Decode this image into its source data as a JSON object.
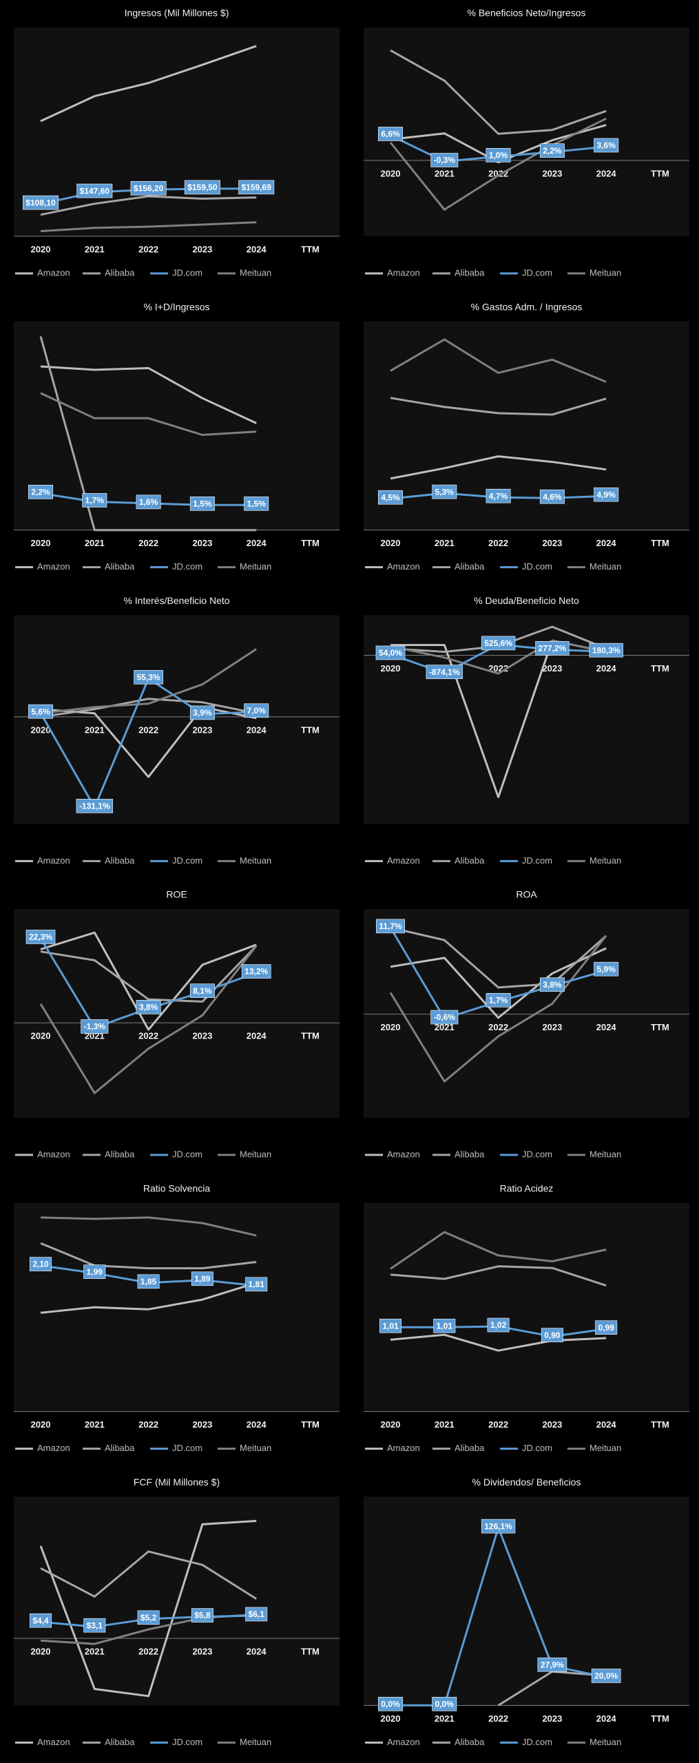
{
  "chart_data": [
    {
      "type": "line",
      "title": "Ingresos (Mil Millones $)",
      "categories": [
        "2020",
        "2021",
        "2022",
        "2023",
        "2024",
        "TTM"
      ],
      "ylim": [
        0,
        700
      ],
      "legend": "bottom",
      "series": [
        {
          "name": "Amazon",
          "color": "#bfbfbf",
          "values": [
            386,
            470,
            514,
            575,
            638,
            null
          ]
        },
        {
          "name": "Alibaba",
          "color": "#a6a6a6",
          "values": [
            72,
            109,
            134,
            126,
            130,
            null
          ]
        },
        {
          "name": "JD.com",
          "color": "#5b9bd5",
          "values": [
            108.1,
            147.6,
            156.2,
            159.5,
            159.69,
            null
          ],
          "value_labels": [
            "$108,10",
            "$147,60",
            "$156,20",
            "$159,50",
            "$159,69",
            null
          ]
        },
        {
          "name": "Meituan",
          "color": "#808080",
          "values": [
            17,
            28,
            32,
            39,
            47,
            null
          ]
        }
      ]
    },
    {
      "type": "line",
      "title": "% Beneficios Neto/Ingresos",
      "categories": [
        "2020",
        "2021",
        "2022",
        "2023",
        "2024",
        "TTM"
      ],
      "ylim": [
        -20,
        35
      ],
      "legend": "bottom",
      "series": [
        {
          "name": "Amazon",
          "color": "#bfbfbf",
          "values": [
            5.5,
            7.1,
            -0.5,
            5.3,
            9.3,
            null
          ]
        },
        {
          "name": "Alibaba",
          "color": "#a6a6a6",
          "values": [
            29,
            21,
            7,
            8,
            13,
            null
          ]
        },
        {
          "name": "JD.com",
          "color": "#5b9bd5",
          "values": [
            6.6,
            -0.3,
            1.0,
            2.2,
            3.6,
            null
          ],
          "value_labels": [
            "6,6%",
            "-0,3%",
            "1,0%",
            "2,2%",
            "3,6%",
            null
          ]
        },
        {
          "name": "Meituan",
          "color": "#808080",
          "values": [
            4.7,
            -13,
            -4,
            4,
            11,
            null
          ]
        }
      ]
    },
    {
      "type": "line",
      "title": "% I+D/Ingresos",
      "categories": [
        "2020",
        "2021",
        "2022",
        "2023",
        "2024",
        "TTM"
      ],
      "ylim": [
        0,
        12.5
      ],
      "legend": "bottom",
      "series": [
        {
          "name": "Amazon",
          "color": "#bfbfbf",
          "values": [
            9.8,
            9.6,
            9.7,
            7.9,
            6.4,
            null
          ]
        },
        {
          "name": "Alibaba",
          "color": "#a6a6a6",
          "values": [
            11.6,
            0,
            0,
            0,
            0,
            null
          ]
        },
        {
          "name": "JD.com",
          "color": "#5b9bd5",
          "values": [
            2.2,
            1.7,
            1.6,
            1.5,
            1.5,
            null
          ],
          "value_labels": [
            "2,2%",
            "1,7%",
            "1,6%",
            "1,5%",
            "1,5%",
            null
          ]
        },
        {
          "name": "Meituan",
          "color": "#808080",
          "values": [
            8.2,
            6.7,
            6.7,
            5.7,
            5.9,
            null
          ]
        }
      ]
    },
    {
      "type": "line",
      "title": "% Gastos Adm. / Ingresos",
      "categories": [
        "2020",
        "2021",
        "2022",
        "2023",
        "2024",
        "TTM"
      ],
      "ylim": [
        0,
        30
      ],
      "legend": "bottom",
      "series": [
        {
          "name": "Amazon",
          "color": "#bfbfbf",
          "values": [
            7.4,
            8.9,
            10.6,
            9.8,
            8.7,
            null
          ]
        },
        {
          "name": "Alibaba",
          "color": "#a6a6a6",
          "values": [
            19,
            17.7,
            16.8,
            16.6,
            18.9,
            null
          ]
        },
        {
          "name": "JD.com",
          "color": "#5b9bd5",
          "values": [
            4.5,
            5.3,
            4.7,
            4.6,
            4.9,
            null
          ],
          "value_labels": [
            "4,5%",
            "5,3%",
            "4,7%",
            "4,6%",
            "4,9%",
            null
          ]
        },
        {
          "name": "Meituan",
          "color": "#808080",
          "values": [
            22.9,
            27.4,
            22.6,
            24.5,
            21.3,
            null
          ]
        }
      ]
    },
    {
      "type": "line",
      "title": "% Interés/Beneficio Neto",
      "categories": [
        "2020",
        "2021",
        "2022",
        "2023",
        "2024",
        "TTM"
      ],
      "ylim": [
        -155,
        147
      ],
      "legend": "bottom",
      "series": [
        {
          "name": "Amazon",
          "color": "#bfbfbf",
          "values": [
            11,
            5,
            -87,
            14,
            -2,
            null
          ]
        },
        {
          "name": "Alibaba",
          "color": "#a6a6a6",
          "values": [
            0,
            11,
            26,
            21,
            5,
            null
          ]
        },
        {
          "name": "JD.com",
          "color": "#5b9bd5",
          "values": [
            5.6,
            -131.1,
            55.3,
            3.9,
            7.0,
            null
          ],
          "value_labels": [
            "5,6%",
            "-131,1%",
            "55,3%",
            "3,9%",
            "7,0%",
            null
          ]
        },
        {
          "name": "Meituan",
          "color": "#808080",
          "values": [
            5,
            14,
            19,
            47,
            98,
            null
          ]
        }
      ]
    },
    {
      "type": "line",
      "title": "% Deuda/Beneficio Neto",
      "categories": [
        "2020",
        "2021",
        "2022",
        "2023",
        "2024",
        "TTM"
      ],
      "ylim": [
        -8200,
        1950
      ],
      "legend": "bottom",
      "series": [
        {
          "name": "Amazon",
          "color": "#bfbfbf",
          "values": [
            500,
            500,
            -6900,
            720,
            170,
            null
          ]
        },
        {
          "name": "Alibaba",
          "color": "#a6a6a6",
          "values": [
            330,
            170,
            440,
            1390,
            330,
            null
          ]
        },
        {
          "name": "JD.com",
          "color": "#5b9bd5",
          "values": [
            54.0,
            -874.1,
            525.6,
            277.2,
            180.3,
            null
          ],
          "value_labels": [
            "54,0%",
            "-874,1%",
            "525,6%",
            "277,2%",
            "180,3%",
            null
          ]
        },
        {
          "name": "Meituan",
          "color": "#808080",
          "values": [
            440,
            -110,
            -890,
            720,
            170,
            null
          ]
        }
      ]
    },
    {
      "type": "line",
      "title": "ROE",
      "categories": [
        "2020",
        "2021",
        "2022",
        "2023",
        "2024",
        "TTM"
      ],
      "ylim": [
        -25,
        30
      ],
      "legend": "bottom",
      "series": [
        {
          "name": "Amazon",
          "color": "#bfbfbf",
          "values": [
            19.4,
            23.8,
            -1.8,
            15.3,
            20.6,
            null
          ]
        },
        {
          "name": "Alibaba",
          "color": "#a6a6a6",
          "values": [
            18.8,
            16.5,
            6.2,
            5.6,
            20.3,
            null
          ]
        },
        {
          "name": "JD.com",
          "color": "#5b9bd5",
          "values": [
            22.3,
            -1.3,
            3.8,
            8.1,
            13.2,
            null
          ],
          "value_labels": [
            "22,3%",
            "-1,3%",
            "3,8%",
            "8,1%",
            "13,2%",
            null
          ]
        },
        {
          "name": "Meituan",
          "color": "#808080",
          "values": [
            5,
            -18.5,
            -6.8,
            2,
            20.3,
            null
          ]
        }
      ]
    },
    {
      "type": "line",
      "title": "ROA",
      "categories": [
        "2020",
        "2021",
        "2022",
        "2023",
        "2024",
        "TTM"
      ],
      "ylim": [
        -14,
        14.2
      ],
      "legend": "bottom",
      "series": [
        {
          "name": "Amazon",
          "color": "#bfbfbf",
          "values": [
            6.4,
            7.6,
            -0.5,
            5.5,
            8.9,
            null
          ]
        },
        {
          "name": "Alibaba",
          "color": "#a6a6a6",
          "values": [
            11.7,
            10,
            3.6,
            4.1,
            10.6,
            null
          ]
        },
        {
          "name": "JD.com",
          "color": "#5b9bd5",
          "values": [
            11.7,
            -0.6,
            1.7,
            3.8,
            5.9,
            null
          ],
          "value_labels": [
            "11,7%",
            "-0,6%",
            "1,7%",
            "3,8%",
            "5,9%",
            null
          ]
        },
        {
          "name": "Meituan",
          "color": "#808080",
          "values": [
            2.9,
            -9.1,
            -3,
            1.4,
            10.6,
            null
          ]
        }
      ]
    },
    {
      "type": "line",
      "title": "Ratio Solvencia",
      "categories": [
        "2020",
        "2021",
        "2022",
        "2023",
        "2024",
        "TTM"
      ],
      "ylim": [
        0,
        3
      ],
      "legend": "bottom",
      "series": [
        {
          "name": "Amazon",
          "color": "#bfbfbf",
          "values": [
            1.42,
            1.5,
            1.47,
            1.61,
            1.85,
            null
          ]
        },
        {
          "name": "Alibaba",
          "color": "#a6a6a6",
          "values": [
            2.42,
            2.1,
            2.06,
            2.06,
            2.15,
            null
          ]
        },
        {
          "name": "JD.com",
          "color": "#5b9bd5",
          "values": [
            2.1,
            1.99,
            1.85,
            1.89,
            1.81,
            null
          ],
          "value_labels": [
            "2,10",
            "1,99",
            "1,85",
            "1,89",
            "1,81",
            null
          ]
        },
        {
          "name": "Meituan",
          "color": "#808080",
          "values": [
            2.79,
            2.77,
            2.79,
            2.71,
            2.53,
            null
          ]
        }
      ]
    },
    {
      "type": "line",
      "title": "Ratio Acidez",
      "categories": [
        "2020",
        "2021",
        "2022",
        "2023",
        "2024",
        "TTM"
      ],
      "ylim": [
        0,
        2.5
      ],
      "legend": "bottom",
      "series": [
        {
          "name": "Amazon",
          "color": "#bfbfbf",
          "values": [
            0.86,
            0.92,
            0.73,
            0.85,
            0.88,
            null
          ]
        },
        {
          "name": "Alibaba",
          "color": "#a6a6a6",
          "values": [
            1.64,
            1.59,
            1.74,
            1.72,
            1.51,
            null
          ]
        },
        {
          "name": "JD.com",
          "color": "#5b9bd5",
          "values": [
            1.01,
            1.01,
            1.02,
            0.9,
            0.99,
            null
          ],
          "value_labels": [
            "1,01",
            "1,01",
            "1,02",
            "0,90",
            "0,99",
            null
          ]
        },
        {
          "name": "Meituan",
          "color": "#808080",
          "values": [
            1.71,
            2.15,
            1.87,
            1.8,
            1.94,
            null
          ]
        }
      ]
    },
    {
      "type": "line",
      "title": "FCF (Mil Millones $)",
      "categories": [
        "2020",
        "2021",
        "2022",
        "2023",
        "2024",
        "TTM"
      ],
      "ylim": [
        -18,
        38
      ],
      "legend": "bottom",
      "series": [
        {
          "name": "Amazon",
          "color": "#bfbfbf",
          "values": [
            24.8,
            -13.6,
            -15.5,
            30.6,
            31.5,
            null
          ]
        },
        {
          "name": "Alibaba",
          "color": "#a6a6a6",
          "values": [
            18.8,
            11.2,
            23.3,
            19.7,
            10.6,
            null
          ]
        },
        {
          "name": "JD.com",
          "color": "#5b9bd5",
          "values": [
            4.4,
            3.1,
            5.2,
            5.8,
            6.1,
            null
          ],
          "value_labels": [
            "$4,4",
            "$3,1",
            "$5,2",
            "$5,8",
            "$6,1",
            null
          ]
        },
        {
          "name": "Meituan",
          "color": "#808080",
          "values": [
            -0.6,
            -1.5,
            2.4,
            5.5,
            6.4,
            null
          ]
        }
      ]
    },
    {
      "type": "line",
      "title": "% Dividendos/ Beneficios",
      "categories": [
        "2020",
        "2021",
        "2022",
        "2023",
        "2024",
        "TTM"
      ],
      "ylim": [
        0,
        148
      ],
      "legend": "bottom",
      "series": [
        {
          "name": "Amazon",
          "color": "#bfbfbf",
          "values": [
            null,
            null,
            null,
            null,
            null,
            null
          ]
        },
        {
          "name": "Alibaba",
          "color": "#a6a6a6",
          "values": [
            null,
            null,
            0,
            24,
            21,
            null
          ]
        },
        {
          "name": "JD.com",
          "color": "#5b9bd5",
          "values": [
            0,
            0,
            126.1,
            27.9,
            20.0,
            null
          ],
          "value_labels": [
            "0,0%",
            "0,0%",
            "126,1%",
            "27,9%",
            "20,0%",
            null
          ]
        },
        {
          "name": "Meituan",
          "color": "#808080",
          "values": [
            null,
            null,
            null,
            null,
            null,
            null
          ]
        }
      ]
    }
  ]
}
